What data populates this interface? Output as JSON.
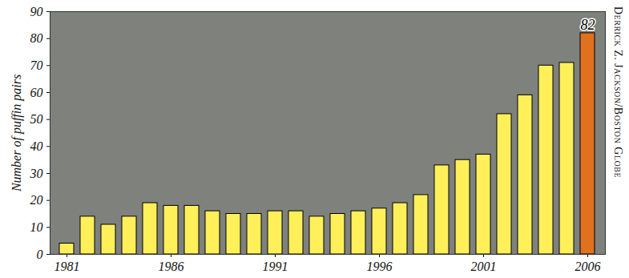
{
  "chart_data": {
    "type": "bar",
    "y_label": "Number of puffin pairs",
    "source": "Derrick Z. Jackson/Boston Globe",
    "x": [
      1981,
      1982,
      1983,
      1984,
      1985,
      1986,
      1987,
      1988,
      1989,
      1990,
      1991,
      1992,
      1993,
      1994,
      1995,
      1996,
      1997,
      1998,
      1999,
      2000,
      2001,
      2002,
      2003,
      2004,
      2005,
      2006
    ],
    "values": [
      4,
      14,
      11,
      14,
      19,
      18,
      18,
      16,
      15,
      15,
      16,
      16,
      14,
      15,
      16,
      17,
      19,
      22,
      33,
      35,
      37,
      52,
      59,
      70,
      71,
      82
    ],
    "colors": [
      "#fff05a",
      "#fff05a",
      "#fff05a",
      "#fff05a",
      "#fff05a",
      "#fff05a",
      "#fff05a",
      "#fff05a",
      "#fff05a",
      "#fff05a",
      "#fff05a",
      "#fff05a",
      "#fff05a",
      "#fff05a",
      "#fff05a",
      "#fff05a",
      "#fff05a",
      "#fff05a",
      "#fff05a",
      "#fff05a",
      "#fff05a",
      "#fff05a",
      "#fff05a",
      "#fff05a",
      "#fff05a",
      "#e0711f"
    ],
    "xticks": [
      1981,
      1986,
      1991,
      1996,
      2001,
      2006
    ],
    "ylim": [
      0,
      90
    ],
    "yticks": [
      0,
      10,
      20,
      30,
      40,
      50,
      60,
      70,
      80,
      90
    ],
    "annotations": [
      {
        "x": 2006,
        "y": 82,
        "text": "82"
      }
    ],
    "grid": false
  }
}
